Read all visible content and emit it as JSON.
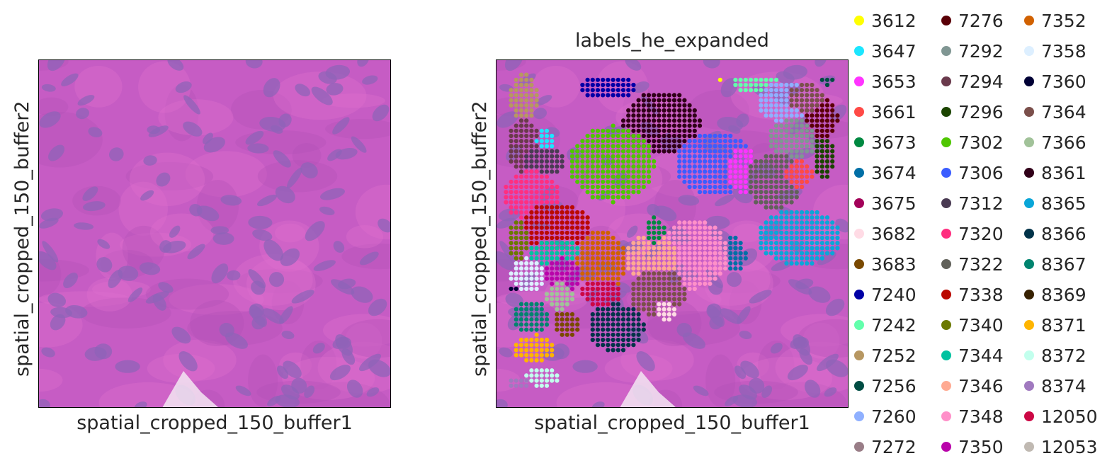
{
  "chart_data": [
    {
      "type": "image",
      "title": "",
      "xlabel": "spatial_cropped_150_buffer1",
      "ylabel": "spatial_cropped_150_buffer2"
    },
    {
      "type": "scatter",
      "title": "labels_he_expanded",
      "xlabel": "spatial_cropped_150_buffer1",
      "ylabel": "spatial_cropped_150_buffer2",
      "legend_position": "right",
      "legend": [
        {
          "label": "3612",
          "color": "#ffff00"
        },
        {
          "label": "3647",
          "color": "#1ce6ff"
        },
        {
          "label": "3653",
          "color": "#ff34ff"
        },
        {
          "label": "3661",
          "color": "#ff4a46"
        },
        {
          "label": "3673",
          "color": "#008941"
        },
        {
          "label": "3674",
          "color": "#006fa6"
        },
        {
          "label": "3675",
          "color": "#a30059"
        },
        {
          "label": "3682",
          "color": "#ffdbe5"
        },
        {
          "label": "3683",
          "color": "#7a4900"
        },
        {
          "label": "7240",
          "color": "#0000a6"
        },
        {
          "label": "7242",
          "color": "#63ffac"
        },
        {
          "label": "7252",
          "color": "#b79762"
        },
        {
          "label": "7256",
          "color": "#004d43"
        },
        {
          "label": "7260",
          "color": "#8fb0ff"
        },
        {
          "label": "7272",
          "color": "#997d87"
        },
        {
          "label": "7276",
          "color": "#5a0007"
        },
        {
          "label": "7292",
          "color": "#809693"
        },
        {
          "label": "7294",
          "color": "#6a3a4c"
        },
        {
          "label": "7296",
          "color": "#1b4400"
        },
        {
          "label": "7302",
          "color": "#4fc601"
        },
        {
          "label": "7306",
          "color": "#3b5dff"
        },
        {
          "label": "7312",
          "color": "#4a3b53"
        },
        {
          "label": "7320",
          "color": "#ff2f80"
        },
        {
          "label": "7322",
          "color": "#61615a"
        },
        {
          "label": "7338",
          "color": "#ba0900"
        },
        {
          "label": "7340",
          "color": "#6b7900"
        },
        {
          "label": "7344",
          "color": "#00c2a0"
        },
        {
          "label": "7346",
          "color": "#ffaa92"
        },
        {
          "label": "7348",
          "color": "#ff90c9"
        },
        {
          "label": "7350",
          "color": "#b903aa"
        },
        {
          "label": "7352",
          "color": "#d16100"
        },
        {
          "label": "7358",
          "color": "#ddefff"
        },
        {
          "label": "7360",
          "color": "#000035"
        },
        {
          "label": "7364",
          "color": "#7b4f4b"
        },
        {
          "label": "7366",
          "color": "#a1c299"
        },
        {
          "label": "8361",
          "color": "#300018"
        },
        {
          "label": "8365",
          "color": "#0aa6d8"
        },
        {
          "label": "8366",
          "color": "#013349"
        },
        {
          "label": "8367",
          "color": "#00846f"
        },
        {
          "label": "8369",
          "color": "#372101"
        },
        {
          "label": "8371",
          "color": "#ffb500"
        },
        {
          "label": "8372",
          "color": "#c2ffed"
        },
        {
          "label": "8374",
          "color": "#a079bf"
        },
        {
          "label": "12050",
          "color": "#cc0744"
        },
        {
          "label": "12053",
          "color": "#c0b9b2"
        }
      ],
      "clusters": [
        {
          "label": "3612",
          "x": 0.63,
          "y": 0.06,
          "rx": 0.008,
          "ry": 0.008
        },
        {
          "label": "7240",
          "x": 0.32,
          "y": 0.08,
          "rx": 0.085,
          "ry": 0.035
        },
        {
          "label": "7242",
          "x": 0.74,
          "y": 0.07,
          "rx": 0.07,
          "ry": 0.025
        },
        {
          "label": "7260",
          "x": 0.82,
          "y": 0.12,
          "rx": 0.08,
          "ry": 0.06
        },
        {
          "label": "7252",
          "x": 0.08,
          "y": 0.11,
          "rx": 0.04,
          "ry": 0.07
        },
        {
          "label": "8361",
          "x": 0.47,
          "y": 0.18,
          "rx": 0.11,
          "ry": 0.09
        },
        {
          "label": "7276",
          "x": 0.92,
          "y": 0.17,
          "rx": 0.05,
          "ry": 0.06
        },
        {
          "label": "7256",
          "x": 0.94,
          "y": 0.06,
          "rx": 0.02,
          "ry": 0.015
        },
        {
          "label": "7364",
          "x": 0.88,
          "y": 0.11,
          "rx": 0.05,
          "ry": 0.04
        },
        {
          "label": "7292",
          "x": 0.84,
          "y": 0.23,
          "rx": 0.07,
          "ry": 0.06
        },
        {
          "label": "7296",
          "x": 0.93,
          "y": 0.28,
          "rx": 0.03,
          "ry": 0.06
        },
        {
          "label": "7294",
          "x": 0.08,
          "y": 0.25,
          "rx": 0.05,
          "ry": 0.08
        },
        {
          "label": "3647",
          "x": 0.14,
          "y": 0.23,
          "rx": 0.025,
          "ry": 0.03
        },
        {
          "label": "7312",
          "x": 0.14,
          "y": 0.29,
          "rx": 0.06,
          "ry": 0.04
        },
        {
          "label": "7302",
          "x": 0.33,
          "y": 0.3,
          "rx": 0.12,
          "ry": 0.11
        },
        {
          "label": "7306",
          "x": 0.62,
          "y": 0.3,
          "rx": 0.11,
          "ry": 0.09
        },
        {
          "label": "3653",
          "x": 0.7,
          "y": 0.32,
          "rx": 0.04,
          "ry": 0.07
        },
        {
          "label": "7322",
          "x": 0.79,
          "y": 0.35,
          "rx": 0.08,
          "ry": 0.08
        },
        {
          "label": "3661",
          "x": 0.86,
          "y": 0.33,
          "rx": 0.04,
          "ry": 0.04
        },
        {
          "label": "7320",
          "x": 0.1,
          "y": 0.39,
          "rx": 0.08,
          "ry": 0.07
        },
        {
          "label": "7338",
          "x": 0.17,
          "y": 0.48,
          "rx": 0.1,
          "ry": 0.07
        },
        {
          "label": "7340",
          "x": 0.06,
          "y": 0.52,
          "rx": 0.03,
          "ry": 0.06
        },
        {
          "label": "8365",
          "x": 0.86,
          "y": 0.51,
          "rx": 0.12,
          "ry": 0.08
        },
        {
          "label": "3674",
          "x": 0.67,
          "y": 0.56,
          "rx": 0.04,
          "ry": 0.05
        },
        {
          "label": "7348",
          "x": 0.56,
          "y": 0.56,
          "rx": 0.1,
          "ry": 0.1
        },
        {
          "label": "7346",
          "x": 0.44,
          "y": 0.57,
          "rx": 0.08,
          "ry": 0.07
        },
        {
          "label": "3673",
          "x": 0.45,
          "y": 0.49,
          "rx": 0.03,
          "ry": 0.04
        },
        {
          "label": "7344",
          "x": 0.18,
          "y": 0.56,
          "rx": 0.09,
          "ry": 0.04
        },
        {
          "label": "7352",
          "x": 0.3,
          "y": 0.58,
          "rx": 0.07,
          "ry": 0.09
        },
        {
          "label": "7358",
          "x": 0.09,
          "y": 0.62,
          "rx": 0.05,
          "ry": 0.05
        },
        {
          "label": "7350",
          "x": 0.19,
          "y": 0.62,
          "rx": 0.05,
          "ry": 0.05
        },
        {
          "label": "12050",
          "x": 0.3,
          "y": 0.67,
          "rx": 0.06,
          "ry": 0.04
        },
        {
          "label": "7364",
          "x": 0.46,
          "y": 0.67,
          "rx": 0.08,
          "ry": 0.07
        },
        {
          "label": "3682",
          "x": 0.48,
          "y": 0.72,
          "rx": 0.03,
          "ry": 0.03
        },
        {
          "label": "7366",
          "x": 0.18,
          "y": 0.68,
          "rx": 0.04,
          "ry": 0.04
        },
        {
          "label": "8367",
          "x": 0.1,
          "y": 0.74,
          "rx": 0.05,
          "ry": 0.05
        },
        {
          "label": "7360",
          "x": 0.05,
          "y": 0.66,
          "rx": 0.01,
          "ry": 0.015
        },
        {
          "label": "3683",
          "x": 0.2,
          "y": 0.76,
          "rx": 0.04,
          "ry": 0.04
        },
        {
          "label": "8366",
          "x": 0.34,
          "y": 0.77,
          "rx": 0.08,
          "ry": 0.07
        },
        {
          "label": "8371",
          "x": 0.11,
          "y": 0.83,
          "rx": 0.06,
          "ry": 0.04
        },
        {
          "label": "8372",
          "x": 0.13,
          "y": 0.91,
          "rx": 0.05,
          "ry": 0.03
        },
        {
          "label": "8374",
          "x": 0.06,
          "y": 0.93,
          "rx": 0.03,
          "ry": 0.02
        }
      ]
    }
  ]
}
